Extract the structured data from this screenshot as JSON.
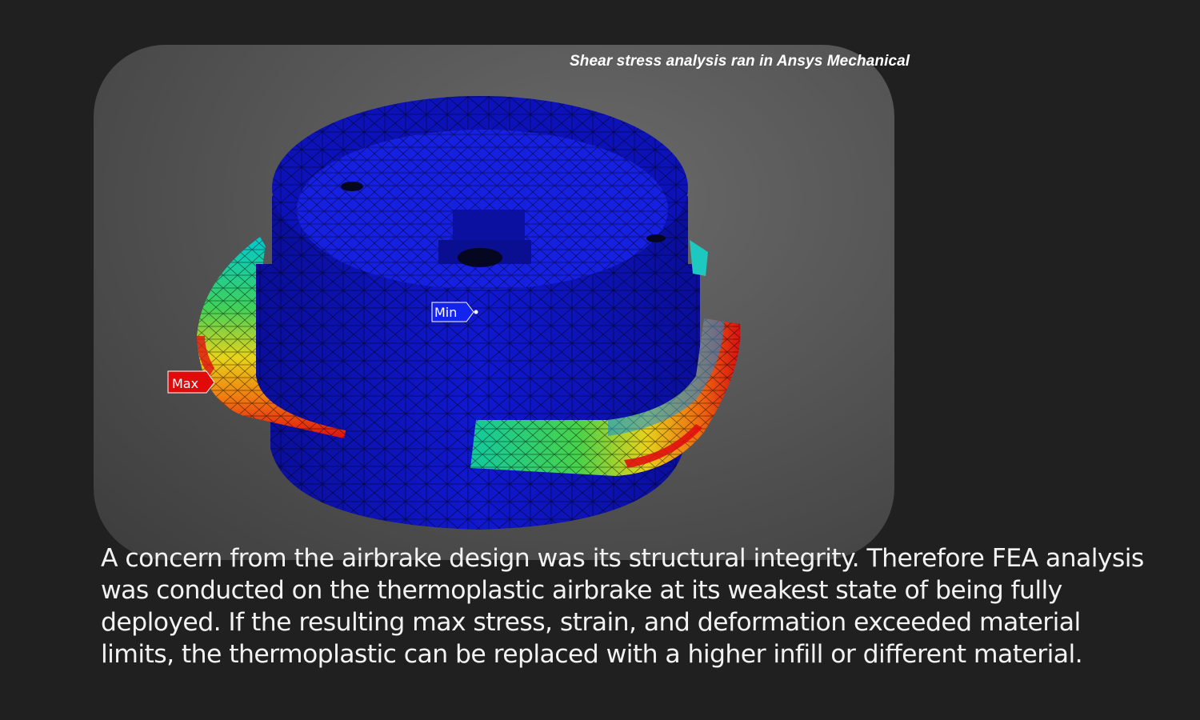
{
  "figure": {
    "caption": "Shear stress analysis ran in Ansys Mechanical",
    "min_label": "Min",
    "max_label": "Max",
    "colors": {
      "low": "#0a10c8",
      "mid_low": "#00b7d8",
      "mid": "#3fd15a",
      "mid_high": "#f2d21a",
      "high": "#e01010"
    }
  },
  "description": "A concern from the airbrake design was its structural integrity. Therefore FEA analysis was conducted on the thermoplastic airbrake at its weakest state of being fully deployed. If the resulting max stress, strain, and deformation exceeded material limits, the thermoplastic can be replaced with a higher infill or different material."
}
